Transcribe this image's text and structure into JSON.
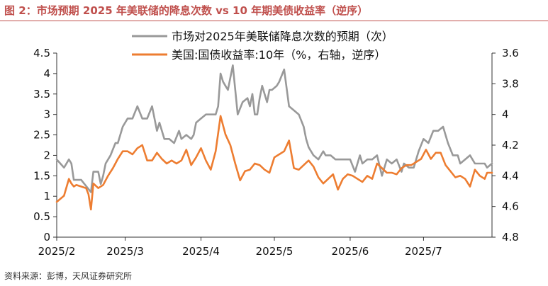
{
  "header": {
    "title": "图 2：市场预期 2025 年美联储的降息次数 vs 10 年期美债收益率（逆序）"
  },
  "footer": {
    "source": "资料来源：彭博，天风证券研究所"
  },
  "chart_data": {
    "type": "line",
    "title": "图 2：市场预期 2025 年美联储的降息次数 vs 10 年期美债收益率（逆序）",
    "xlabel": "",
    "ylabel": "",
    "x_ticks": [
      "2025/2",
      "2025/3",
      "2025/4",
      "2025/5",
      "2025/6",
      "2025/7"
    ],
    "x_range_days": [
      0,
      178
    ],
    "y_left": {
      "min": 0,
      "max": 4.5,
      "ticks": [
        "0",
        "0.5",
        "1",
        "1.5",
        "2",
        "2.5",
        "3",
        "3.5",
        "4",
        "4.5"
      ]
    },
    "y_right": {
      "min": 3.6,
      "max": 4.8,
      "inverted": true,
      "ticks": [
        "3.6",
        "3.8",
        "4",
        "4.2",
        "4.4",
        "4.6",
        "4.8"
      ]
    },
    "grid": false,
    "legend_position": "top-center",
    "series": [
      {
        "name": "市场对2025年美联储降息次数的预期（次）",
        "axis": "left",
        "color": "#999999",
        "x": [
          0,
          3,
          5,
          6,
          7,
          8,
          10,
          14,
          15,
          17,
          18,
          19,
          20,
          22,
          24,
          25,
          27,
          29,
          31,
          33,
          35,
          37,
          39,
          41,
          42,
          44,
          46,
          48,
          50,
          51,
          53,
          55,
          56,
          57,
          59,
          61,
          63,
          64,
          65,
          66,
          67,
          68,
          69,
          70,
          72,
          74,
          76,
          78,
          79,
          80,
          81,
          82,
          83,
          84,
          85,
          86,
          87,
          88,
          90,
          91,
          93,
          95,
          97,
          99,
          101,
          102,
          103,
          105,
          107,
          109,
          110,
          112,
          114,
          116,
          118,
          120,
          122,
          124,
          125,
          127,
          129,
          131,
          133,
          135,
          137,
          139,
          141,
          142,
          144,
          146,
          148,
          150,
          152,
          154,
          156,
          158,
          160,
          162,
          164,
          165,
          167,
          169,
          171,
          173,
          175,
          176,
          178
        ],
        "y": [
          1.9,
          1.7,
          1.9,
          1.8,
          1.4,
          1.4,
          1.4,
          1.1,
          1.6,
          1.6,
          1.3,
          1.5,
          1.8,
          2.0,
          2.3,
          2.3,
          2.7,
          2.9,
          2.9,
          3.2,
          2.9,
          2.9,
          3.2,
          2.6,
          2.8,
          2.4,
          2.4,
          2.3,
          2.6,
          2.4,
          2.5,
          2.4,
          2.5,
          2.8,
          2.9,
          3.0,
          3.0,
          3.0,
          3.0,
          3.2,
          4.0,
          3.8,
          3.7,
          3.6,
          4.2,
          3.0,
          3.3,
          3.4,
          3.2,
          3.5,
          3.0,
          3.0,
          3.4,
          3.7,
          3.5,
          3.3,
          3.6,
          3.6,
          3.7,
          3.8,
          4.1,
          3.2,
          3.1,
          3.0,
          2.7,
          2.4,
          2.2,
          2.0,
          1.9,
          2.1,
          2.0,
          2.0,
          1.9,
          1.9,
          1.9,
          1.9,
          1.6,
          2.0,
          1.8,
          1.9,
          1.9,
          2.0,
          1.5,
          1.9,
          1.8,
          1.9,
          1.6,
          1.8,
          1.7,
          1.7,
          2.1,
          2.4,
          2.3,
          2.6,
          2.6,
          2.7,
          2.3,
          2.0,
          2.0,
          1.8,
          1.9,
          2.0,
          1.8,
          1.8,
          1.8,
          1.7,
          1.8
        ]
      },
      {
        "name": "美国:国债收益率:10年（%，右轴，逆序）",
        "axis": "right",
        "color": "#ed7d31",
        "x": [
          0,
          3,
          5,
          6,
          7,
          8,
          10,
          12,
          13,
          14,
          15,
          17,
          19,
          21,
          23,
          25,
          27,
          29,
          31,
          33,
          35,
          37,
          39,
          41,
          43,
          45,
          47,
          49,
          51,
          53,
          55,
          57,
          59,
          61,
          63,
          65,
          67,
          69,
          71,
          73,
          75,
          77,
          79,
          81,
          83,
          85,
          87,
          89,
          91,
          93,
          95,
          97,
          99,
          101,
          103,
          105,
          107,
          109,
          111,
          113,
          115,
          117,
          119,
          121,
          123,
          125,
          127,
          129,
          131,
          133,
          135,
          137,
          139,
          141,
          143,
          145,
          147,
          149,
          151,
          153,
          155,
          157,
          159,
          161,
          163,
          165,
          167,
          169,
          171,
          173,
          175,
          176,
          178
        ],
        "y": [
          4.57,
          4.53,
          4.42,
          4.45,
          4.47,
          4.46,
          4.47,
          4.48,
          4.52,
          4.62,
          4.45,
          4.48,
          4.46,
          4.4,
          4.35,
          4.29,
          4.24,
          4.24,
          4.26,
          4.22,
          4.2,
          4.3,
          4.3,
          4.25,
          4.29,
          4.32,
          4.3,
          4.32,
          4.3,
          4.23,
          4.33,
          4.28,
          4.22,
          4.3,
          4.36,
          4.24,
          4.01,
          4.13,
          4.2,
          4.32,
          4.43,
          4.37,
          4.36,
          4.32,
          4.33,
          4.36,
          4.38,
          4.28,
          4.26,
          4.24,
          4.17,
          4.35,
          4.36,
          4.33,
          4.3,
          4.34,
          4.41,
          4.45,
          4.42,
          4.39,
          4.49,
          4.42,
          4.39,
          4.4,
          4.42,
          4.44,
          4.4,
          4.42,
          4.32,
          4.35,
          4.38,
          4.38,
          4.39,
          4.35,
          4.33,
          4.33,
          4.31,
          4.29,
          4.23,
          4.29,
          4.25,
          4.25,
          4.33,
          4.37,
          4.41,
          4.4,
          4.42,
          4.47,
          4.36,
          4.4,
          4.42,
          4.38,
          4.38
        ]
      }
    ]
  }
}
